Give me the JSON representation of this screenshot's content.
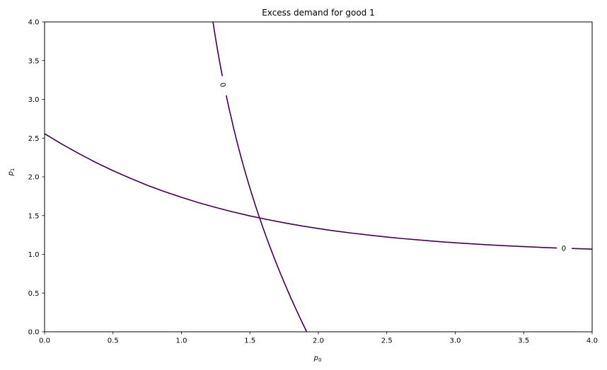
{
  "figure": {
    "title": "Excess demand for good 1",
    "xlabel": {
      "base": "p",
      "sub": "0"
    },
    "ylabel": {
      "base": "p",
      "sub": "1"
    },
    "background_color": "#ffffff",
    "spine_color": "#000000",
    "tick_color": "#000000"
  },
  "chart_data": {
    "type": "line",
    "subtype": "contour-zero-level-set",
    "title": "Excess demand for good 1",
    "xlabel": "p_0",
    "ylabel": "p_1",
    "xlim": [
      0.0,
      4.0
    ],
    "ylim": [
      0.0,
      4.0
    ],
    "xticks": [
      0.0,
      0.5,
      1.0,
      1.5,
      2.0,
      2.5,
      3.0,
      3.5,
      4.0
    ],
    "yticks": [
      0.0,
      0.5,
      1.0,
      1.5,
      2.0,
      2.5,
      3.0,
      3.5,
      4.0
    ],
    "tick_decimals": 1,
    "grid": false,
    "legend_position": "none",
    "line_color": "#440154",
    "line_width": 1.6,
    "intersection_point": [
      1.57,
      1.48
    ],
    "series": [
      {
        "name": "zero-contour-steep",
        "contour_level": 0,
        "label": {
          "text": "0",
          "x": 1.303,
          "y": 3.187,
          "rotation_deg": 78
        },
        "segments": [
          [
            [
              1.2302,
              4.0
            ],
            [
              1.24,
              3.8887
            ],
            [
              1.25,
              3.7795
            ],
            [
              1.26,
              3.6741
            ],
            [
              1.27,
              3.5727
            ],
            [
              1.28,
              3.4743
            ],
            [
              1.29,
              3.3783
            ],
            [
              1.2985,
              3.3008
            ]
          ],
          [
            [
              1.327,
              3.0517
            ],
            [
              1.338,
              2.9608
            ],
            [
              1.35,
              2.8646
            ],
            [
              1.365,
              2.7542
            ],
            [
              1.38,
              2.6363
            ],
            [
              1.4,
              2.4928
            ],
            [
              1.42,
              2.3554
            ],
            [
              1.44,
              2.2236
            ],
            [
              1.46,
              2.097
            ],
            [
              1.48,
              1.9748
            ],
            [
              1.5,
              1.857
            ],
            [
              1.52,
              1.7432
            ],
            [
              1.54,
              1.6328
            ],
            [
              1.56,
              1.5257
            ],
            [
              1.58,
              1.4219
            ],
            [
              1.6,
              1.3209
            ],
            [
              1.62,
              1.2226
            ],
            [
              1.64,
              1.1268
            ],
            [
              1.66,
              1.0334
            ],
            [
              1.68,
              0.9423
            ],
            [
              1.7,
              0.8532
            ],
            [
              1.72,
              0.766
            ],
            [
              1.74,
              0.6807
            ],
            [
              1.76,
              0.5972
            ],
            [
              1.78,
              0.5153
            ],
            [
              1.8,
              0.435
            ],
            [
              1.82,
              0.3562
            ],
            [
              1.84,
              0.2788
            ],
            [
              1.86,
              0.2027
            ],
            [
              1.88,
              0.128
            ],
            [
              1.9,
              0.0546
            ],
            [
              1.915,
              0.0
            ]
          ]
        ]
      },
      {
        "name": "zero-contour-flat",
        "contour_level": 0,
        "label": {
          "text": "0",
          "x": 3.793,
          "y": 1.078,
          "rotation_deg": 4
        },
        "segments": [
          [
            [
              0.0,
              2.558
            ],
            [
              0.125,
              2.424
            ],
            [
              0.25,
              2.301
            ],
            [
              0.375,
              2.185
            ],
            [
              0.5,
              2.08
            ],
            [
              0.625,
              1.983
            ],
            [
              0.75,
              1.892
            ],
            [
              0.875,
              1.811
            ],
            [
              1.0,
              1.736
            ],
            [
              1.125,
              1.667
            ],
            [
              1.25,
              1.605
            ],
            [
              1.375,
              1.548
            ],
            [
              1.5,
              1.496
            ],
            [
              1.625,
              1.45
            ],
            [
              1.75,
              1.407
            ],
            [
              1.875,
              1.368
            ],
            [
              2.0,
              1.333
            ],
            [
              2.125,
              1.301
            ],
            [
              2.25,
              1.273
            ],
            [
              2.375,
              1.247
            ],
            [
              2.5,
              1.223
            ],
            [
              2.625,
              1.202
            ],
            [
              2.75,
              1.183
            ],
            [
              2.875,
              1.165
            ],
            [
              3.0,
              1.149
            ],
            [
              3.125,
              1.135
            ],
            [
              3.25,
              1.122
            ],
            [
              3.375,
              1.11
            ],
            [
              3.5,
              1.1
            ],
            [
              3.625,
              1.09
            ],
            [
              3.742,
              1.082
            ]
          ],
          [
            [
              3.851,
              1.0755
            ],
            [
              4.0,
              1.067
            ]
          ]
        ]
      }
    ]
  }
}
